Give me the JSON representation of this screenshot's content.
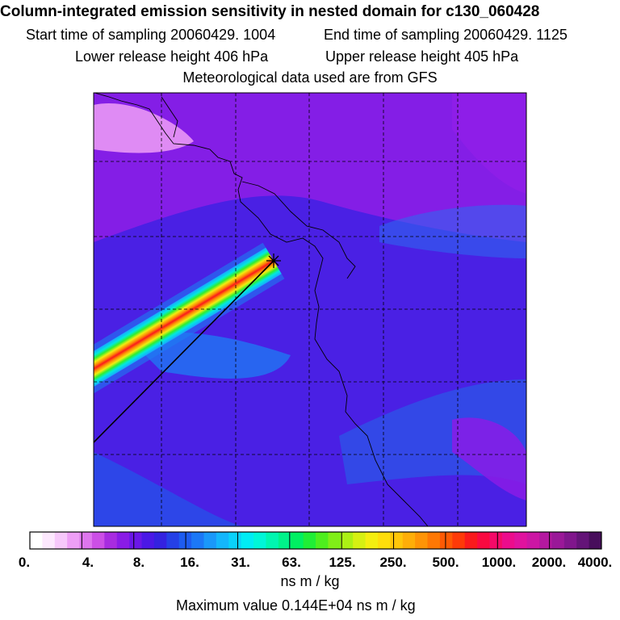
{
  "header": {
    "title": "Column-integrated emission sensitivity in nested domain for c130_060428",
    "start_label": "Start time of sampling 20060429.  1004",
    "end_label": "End time of sampling 20060429.  1125",
    "lower_label": "Lower release height  406 hPa",
    "upper_label": "Upper release height  405 hPa",
    "met_label": "Meteorological data used are from GFS"
  },
  "chart_data": {
    "type": "heatmap",
    "title": "Column-integrated emission sensitivity in nested domain for c130_060428",
    "colorbar": {
      "ticks": [
        "0.",
        "4.",
        "8.",
        "16.",
        "31.",
        "63.",
        "125.",
        "250.",
        "500.",
        "1000.",
        "2000.",
        "4000."
      ],
      "colors": [
        "#ffffff",
        "#fde8fe",
        "#f7c8fb",
        "#ee9ff6",
        "#de76ee",
        "#cc4fe6",
        "#a82ce0",
        "#8a1ce6",
        "#6b17e8",
        "#4b18e6",
        "#3422e0",
        "#2540e6",
        "#1e5cf0",
        "#1c78f6",
        "#1a98fa",
        "#14b6fc",
        "#0ad2fa",
        "#00ecf4",
        "#00f6d8",
        "#00f6b0",
        "#00f28a",
        "#00f062",
        "#20ee36",
        "#4eee1e",
        "#80ee18",
        "#acf014",
        "#d6f012",
        "#f4ee10",
        "#fede0c",
        "#fec60a",
        "#feae08",
        "#fe9406",
        "#fe7804",
        "#fe5a04",
        "#fe3a08",
        "#fa1a1c",
        "#fa0a40",
        "#f40a68",
        "#ec0c8c",
        "#e0129e",
        "#cc16a4",
        "#b418a0",
        "#9a1898",
        "#80168c",
        "#641478",
        "#480e5c"
      ],
      "unit": "ns m / kg"
    },
    "max_value_label": "Maximum value  0.144E+04 ns m / kg"
  }
}
